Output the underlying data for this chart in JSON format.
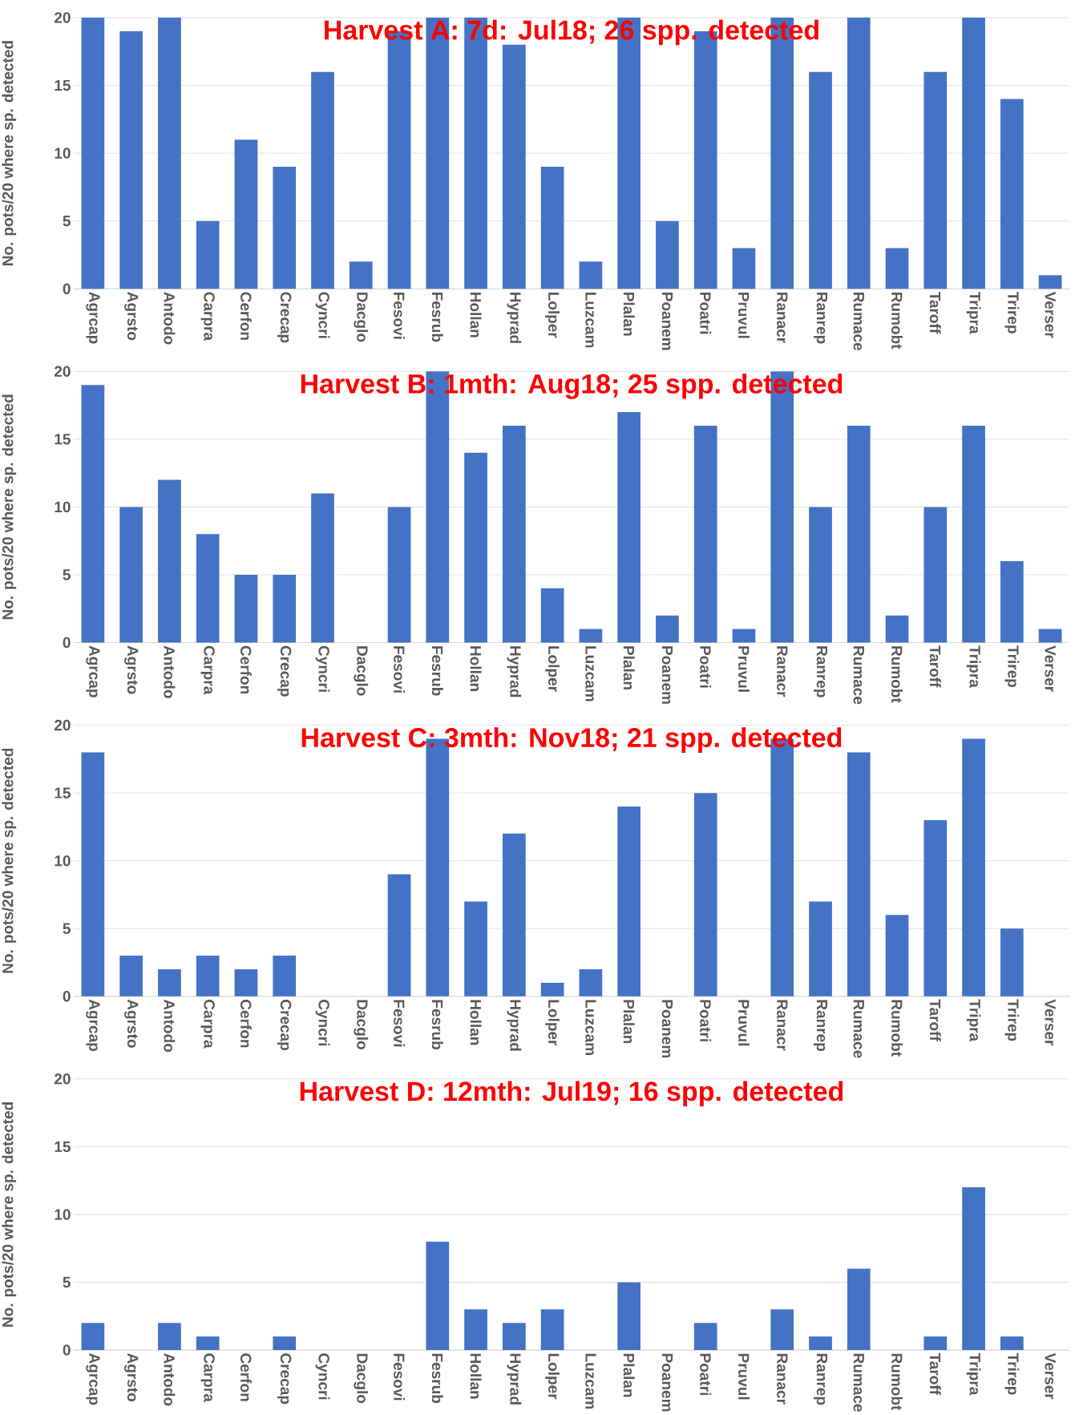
{
  "chart_data": [
    {
      "type": "bar",
      "title": "Harvest A: 7d: Jul18; 26 spp. detected",
      "ylabel": "No. pots/20  where sp. detected",
      "color": "#4472c4",
      "ylim": [
        0,
        20
      ],
      "yticks": [
        0,
        5,
        10,
        15,
        20
      ],
      "grid": "y",
      "categories": [
        "Agrcap",
        "Agrsto",
        "Antodo",
        "Carpra",
        "Cerfon",
        "Crecap",
        "Cyncri",
        "Dacglo",
        "Fesovi",
        "Fesrub",
        "Hollan",
        "Hyprad",
        "Lolper",
        "Luzcam",
        "Plalan",
        "Poanem",
        "Poatri",
        "Pruvul",
        "Ranacr",
        "Ranrep",
        "Rumace",
        "Rumobt",
        "Taroff",
        "Tripra",
        "Trirep",
        "Verser"
      ],
      "values": [
        20,
        19,
        20,
        5,
        11,
        9,
        16,
        2,
        19,
        20,
        20,
        18,
        9,
        2,
        20,
        5,
        19,
        3,
        20,
        16,
        20,
        3,
        16,
        20,
        14,
        1
      ]
    },
    {
      "type": "bar",
      "title": "Harvest B: 1mth: Aug18; 25 spp. detected",
      "ylabel": "No. pots/20  where sp. detected",
      "color": "#4472c4",
      "ylim": [
        0,
        20
      ],
      "yticks": [
        0,
        5,
        10,
        15,
        20
      ],
      "grid": "y",
      "categories": [
        "Agrcap",
        "Agrsto",
        "Antodo",
        "Carpra",
        "Cerfon",
        "Crecap",
        "Cyncri",
        "Dacglo",
        "Fesovi",
        "Fesrub",
        "Hollan",
        "Hyprad",
        "Lolper",
        "Luzcam",
        "Plalan",
        "Poanem",
        "Poatri",
        "Pruvul",
        "Ranacr",
        "Ranrep",
        "Rumace",
        "Rumobt",
        "Taroff",
        "Tripra",
        "Trirep",
        "Verser"
      ],
      "values": [
        19,
        10,
        12,
        8,
        5,
        5,
        11,
        0,
        10,
        20,
        14,
        16,
        4,
        1,
        17,
        2,
        16,
        1,
        20,
        10,
        16,
        2,
        10,
        16,
        6,
        1
      ]
    },
    {
      "type": "bar",
      "title": "Harvest C: 3mth: Nov18; 21 spp. detected",
      "ylabel": "No. pots/20  where sp. detected",
      "color": "#4472c4",
      "ylim": [
        0,
        20
      ],
      "yticks": [
        0,
        5,
        10,
        15,
        20
      ],
      "grid": "y",
      "categories": [
        "Agrcap",
        "Agrsto",
        "Antodo",
        "Carpra",
        "Cerfon",
        "Crecap",
        "Cyncri",
        "Dacglo",
        "Fesovi",
        "Fesrub",
        "Hollan",
        "Hyprad",
        "Lolper",
        "Luzcam",
        "Plalan",
        "Poanem",
        "Poatri",
        "Pruvul",
        "Ranacr",
        "Ranrep",
        "Rumace",
        "Rumobt",
        "Taroff",
        "Tripra",
        "Trirep",
        "Verser"
      ],
      "values": [
        18,
        3,
        2,
        3,
        2,
        3,
        0,
        0,
        9,
        19,
        7,
        12,
        1,
        2,
        14,
        0,
        15,
        0,
        19,
        7,
        18,
        6,
        13,
        19,
        5,
        0
      ]
    },
    {
      "type": "bar",
      "title": "Harvest D: 12mth: Jul19; 16 spp. detected",
      "ylabel": "No. pots/20  where sp. detected",
      "color": "#4472c4",
      "ylim": [
        0,
        20
      ],
      "yticks": [
        0,
        5,
        10,
        15,
        20
      ],
      "grid": "y",
      "categories": [
        "Agrcap",
        "Agrsto",
        "Antodo",
        "Carpra",
        "Cerfon",
        "Crecap",
        "Cyncri",
        "Dacglo",
        "Fesovi",
        "Fesrub",
        "Hollan",
        "Hyprad",
        "Lolper",
        "Luzcam",
        "Plalan",
        "Poanem",
        "Poatri",
        "Pruvul",
        "Ranacr",
        "Ranrep",
        "Rumace",
        "Rumobt",
        "Taroff",
        "Tripra",
        "Trirep",
        "Verser"
      ],
      "values": [
        2,
        0,
        2,
        1,
        0,
        1,
        0,
        0,
        0,
        8,
        3,
        2,
        3,
        0,
        5,
        0,
        2,
        0,
        3,
        1,
        6,
        0,
        1,
        12,
        1,
        0
      ]
    }
  ]
}
